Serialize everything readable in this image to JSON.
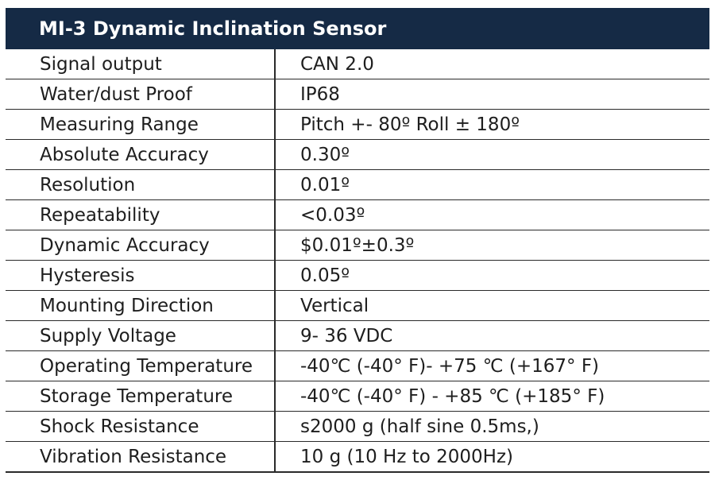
{
  "table": {
    "title": "MI-3 Dynamic Inclination Sensor",
    "rows": [
      {
        "label": "Signal output",
        "value": "CAN 2.0"
      },
      {
        "label": "Water/dust Proof",
        "value": "IP68"
      },
      {
        "label": "Measuring Range",
        "value": "Pitch +- 80º Roll ± 180º"
      },
      {
        "label": "Absolute Accuracy",
        "value": "0.30º"
      },
      {
        "label": "Resolution",
        "value": "0.01º"
      },
      {
        "label": "Repeatability",
        "value": "<0.03º"
      },
      {
        "label": "Dynamic Accuracy",
        "value": "$0.01º±0.3º"
      },
      {
        "label": "Hysteresis",
        "value": "0.05º"
      },
      {
        "label": "Mounting Direction",
        "value": "Vertical"
      },
      {
        "label": "Supply Voltage",
        "value": "9- 36 VDC"
      },
      {
        "label": "Operating Temperature",
        "value": "-40℃ (-40° F)- +75 ℃ (+167° F)"
      },
      {
        "label": "Storage Temperature",
        "value": "-40℃ (-40° F)  - +85 ℃ (+185° F)"
      },
      {
        "label": "Shock Resistance",
        "value": "s2000 g (half sine 0.5ms,)"
      },
      {
        "label": "Vibration Resistance",
        "value": "10 g (10 Hz to 2000Hz)"
      }
    ]
  }
}
